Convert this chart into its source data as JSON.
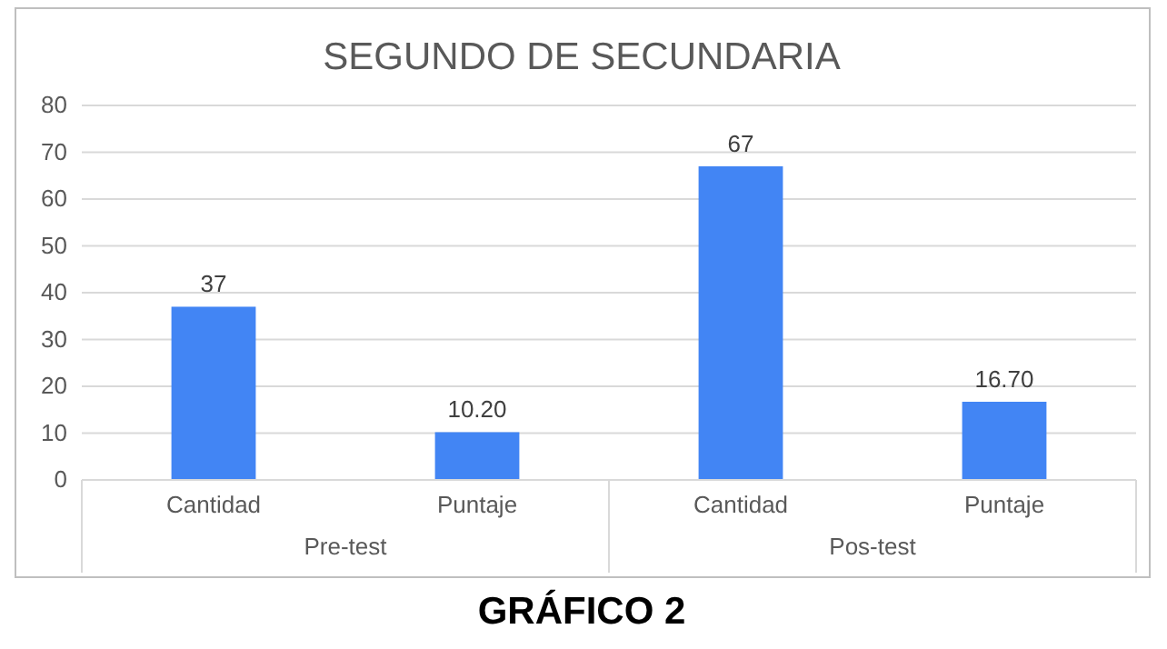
{
  "chart_data": {
    "type": "bar",
    "title": "SEGUNDO DE SECUNDARIA",
    "categories": [
      "Cantidad",
      "Puntaje",
      "Cantidad",
      "Puntaje"
    ],
    "values": [
      37,
      10.2,
      67,
      16.7
    ],
    "value_labels": [
      "37",
      "10.20",
      "67",
      "16.70"
    ],
    "color": "#4285f4",
    "ylim": [
      0,
      80
    ],
    "yticks": [
      0,
      10,
      20,
      30,
      40,
      50,
      60,
      70,
      80
    ],
    "grid": "y",
    "annotations": [
      "Pre-test",
      "Pos-test",
      "GRÁFICO 2"
    ]
  }
}
